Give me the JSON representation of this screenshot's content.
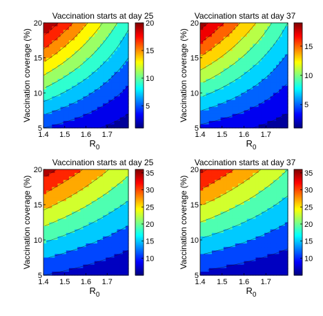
{
  "chart_data": [
    {
      "type": "heatmap",
      "title": "Vaccination starts at day 25",
      "xlabel": "R",
      "xlabel_sub": "0",
      "ylabel": "Vaccination coverage (%)",
      "xlim": [
        1.4,
        1.8
      ],
      "ylim": [
        5,
        20
      ],
      "xticks": [
        "1.4",
        "1.5",
        "1.6",
        "1.7"
      ],
      "yticks": [
        "5",
        "10",
        "15",
        "20"
      ],
      "zlim": [
        1,
        20
      ],
      "colorbar_ticks": [
        "5",
        "10",
        "15",
        "20"
      ],
      "z_model": {
        "corner_x1.4_y20": 20,
        "corner_x1.8_y20": 8.5,
        "corner_x1.4_y5": 4,
        "corner_x1.8_y5": 1
      },
      "contour_levels": [
        2,
        4,
        6,
        8,
        10,
        12,
        14,
        16,
        18
      ]
    },
    {
      "type": "heatmap",
      "title": "Vaccination starts at day 37",
      "xlabel": "R",
      "xlabel_sub": "0",
      "ylabel": "Vaccination coverage (%)",
      "xlim": [
        1.4,
        1.8
      ],
      "ylim": [
        5,
        20
      ],
      "xticks": [
        "1.4",
        "1.5",
        "1.6",
        "1.7"
      ],
      "yticks": [
        "5",
        "10",
        "15",
        "20"
      ],
      "zlim": [
        1,
        19
      ],
      "colorbar_ticks": [
        "5",
        "10",
        "15"
      ],
      "z_model": {
        "corner_x1.4_y20": 19,
        "corner_x1.8_y20": 8,
        "corner_x1.4_y5": 3.5,
        "corner_x1.8_y5": 1
      },
      "contour_levels": [
        2,
        4,
        6,
        8,
        10,
        12,
        14,
        16,
        18
      ]
    },
    {
      "type": "heatmap",
      "title": "Vaccination starts at day 25",
      "xlabel": "R",
      "xlabel_sub": "0",
      "ylabel": "Vaccination coverage (%)",
      "xlim": [
        1.4,
        1.8
      ],
      "ylim": [
        5,
        20
      ],
      "xticks": [
        "1.4",
        "1.5",
        "1.6",
        "1.7"
      ],
      "yticks": [
        "5",
        "10",
        "15",
        "20"
      ],
      "zlim": [
        5,
        36
      ],
      "colorbar_ticks": [
        "10",
        "15",
        "20",
        "25",
        "30",
        "35"
      ],
      "z_model": {
        "corner_x1.4_y20": 35,
        "corner_x1.8_y20": 22,
        "corner_x1.4_y5": 9,
        "corner_x1.8_y5": 5
      },
      "contour_levels": [
        9,
        13,
        17,
        21,
        25,
        29,
        33
      ]
    },
    {
      "type": "heatmap",
      "title": "Vaccination starts at day 37",
      "xlabel": "R",
      "xlabel_sub": "0",
      "ylabel": "Vaccination coverage (%)",
      "xlim": [
        1.4,
        1.8
      ],
      "ylim": [
        5,
        20
      ],
      "xticks": [
        "1.4",
        "1.5",
        "1.6",
        "1.7"
      ],
      "yticks": [
        "5",
        "10",
        "15",
        "20"
      ],
      "zlim": [
        5,
        36
      ],
      "colorbar_ticks": [
        "10",
        "15",
        "20",
        "25",
        "30",
        "35"
      ],
      "z_model": {
        "corner_x1.4_y20": 34,
        "corner_x1.8_y20": 21,
        "corner_x1.4_y5": 8,
        "corner_x1.8_y5": 5
      },
      "contour_levels": [
        9,
        13,
        17,
        21,
        25,
        29,
        33
      ]
    }
  ]
}
